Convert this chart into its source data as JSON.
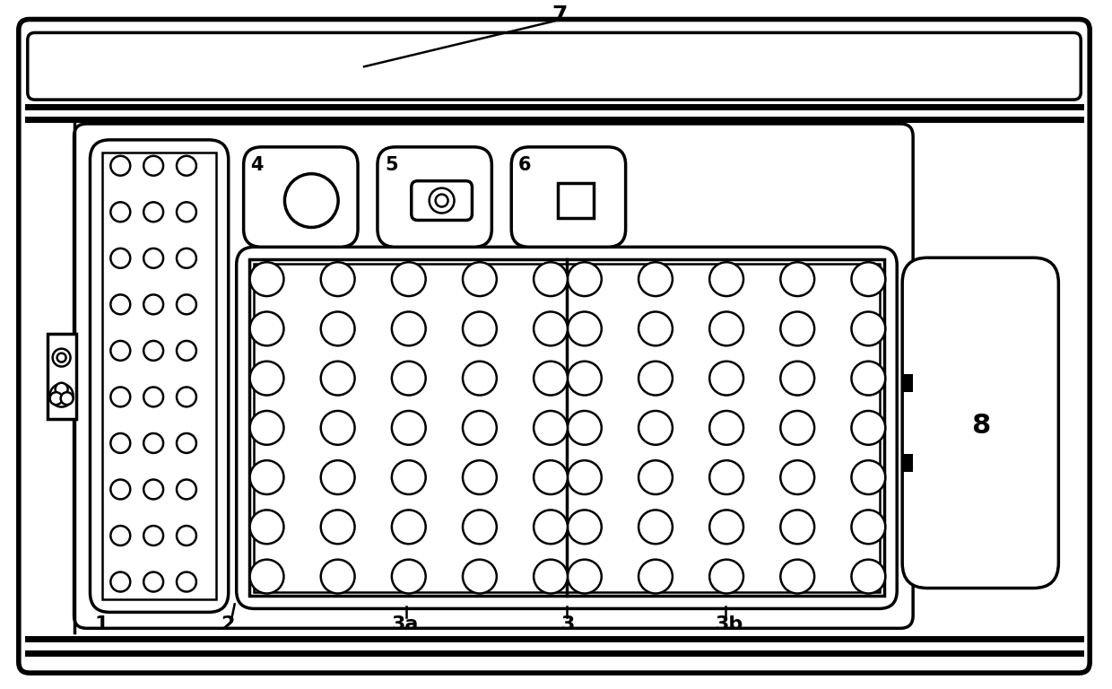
{
  "bg_color": "#ffffff",
  "line_color": "#000000",
  "fig_width": 12.4,
  "fig_height": 7.68,
  "label_7": "7",
  "label_1": "1",
  "label_2": "2",
  "label_3": "3",
  "label_3a": "3a",
  "label_3b": "3b",
  "label_4": "4",
  "label_5": "5",
  "label_6": "6",
  "label_8": "8"
}
